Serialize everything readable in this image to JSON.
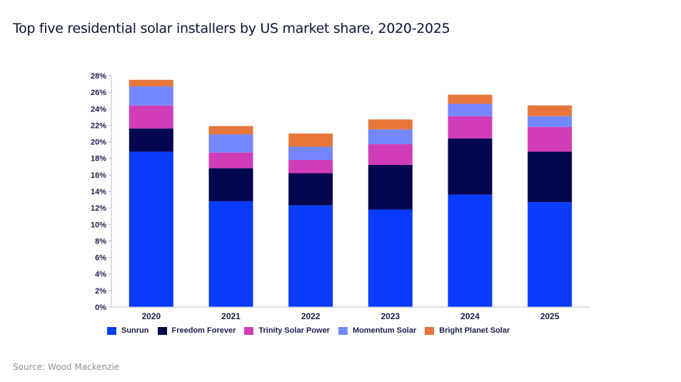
{
  "title": "Top five residential solar installers by US market share, 2020-2025",
  "source": "Source: Wood Mackenzie",
  "chart_data": {
    "type": "bar",
    "stacked": true,
    "categories": [
      "2020",
      "2021",
      "2022",
      "2023",
      "2024",
      "2025"
    ],
    "ylim": [
      0,
      28
    ],
    "yticks": [
      "0%",
      "2%",
      "4%",
      "6%",
      "8%",
      "10%",
      "12%",
      "14%",
      "16%",
      "18%",
      "20%",
      "22%",
      "24%",
      "26%",
      "28%"
    ],
    "series": [
      {
        "name": "Sunrun",
        "color": "#0a3cff",
        "values": [
          18.8,
          12.8,
          12.3,
          11.8,
          13.6,
          12.7
        ]
      },
      {
        "name": "Freedom Forever",
        "color": "#04064f",
        "values": [
          2.8,
          4.0,
          3.9,
          5.4,
          6.8,
          6.1
        ]
      },
      {
        "name": "Trinity Solar Power",
        "color": "#d13db8",
        "values": [
          2.8,
          1.9,
          1.6,
          2.5,
          2.7,
          3.0
        ]
      },
      {
        "name": "Momentum Solar",
        "color": "#7487ff",
        "values": [
          2.3,
          2.2,
          1.6,
          1.8,
          1.5,
          1.3
        ]
      },
      {
        "name": "Bright Planet Solar",
        "color": "#e8763a",
        "values": [
          0.8,
          1.0,
          1.6,
          1.2,
          1.1,
          1.3
        ]
      }
    ],
    "legend_position": "bottom"
  }
}
